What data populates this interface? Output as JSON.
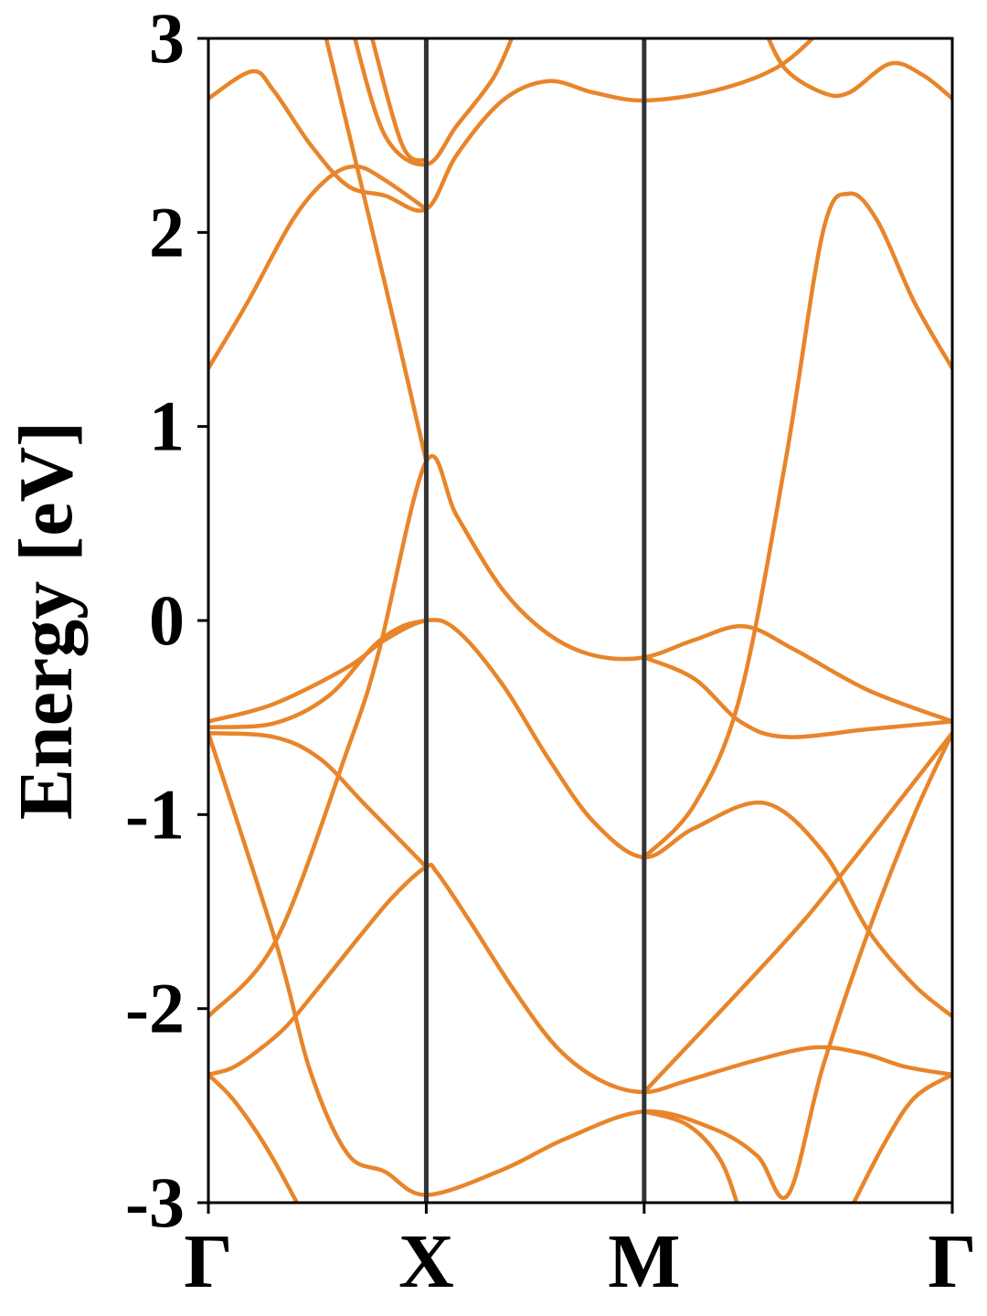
{
  "chart_data": {
    "type": "line",
    "ylabel": "Energy [eV]",
    "xlim": [
      0,
      3.414
    ],
    "ylim": [
      -3,
      3
    ],
    "xticks": [
      {
        "value": 0,
        "label": "Γ"
      },
      {
        "value": 1,
        "label": "X"
      },
      {
        "value": 2,
        "label": "M"
      },
      {
        "value": 3.414,
        "label": "Γ"
      }
    ],
    "yticks": [
      -3,
      -2,
      -1,
      0,
      1,
      2,
      3
    ],
    "series": [
      {
        "color": "#e8852a",
        "x": [
          0,
          0.1,
          0.2,
          0.3,
          0.43
        ],
        "values": [
          -2.34,
          -2.45,
          -2.6,
          -2.78,
          -3.05
        ]
      },
      {
        "color": "#e8852a",
        "x": [
          0,
          0.1,
          0.2,
          0.35,
          0.5,
          0.7,
          0.85,
          1,
          1.05,
          1.2,
          1.4,
          1.6,
          1.8,
          2,
          2.2,
          2.5,
          2.78,
          3.0,
          3.2,
          3.414
        ],
        "values": [
          -2.34,
          -2.31,
          -2.24,
          -2.1,
          -1.9,
          -1.62,
          -1.42,
          -1.27,
          -1.3,
          -1.55,
          -1.9,
          -2.2,
          -2.37,
          -2.43,
          -2.37,
          -2.27,
          -2.2,
          -2.23,
          -2.3,
          -2.34
        ]
      },
      {
        "color": "#e8852a",
        "x": [
          0,
          0.31,
          0.64,
          0.78,
          1,
          1.14,
          1.35,
          1.56,
          1.77,
          2,
          2.23,
          2.46,
          2.69,
          3.03,
          3.414
        ],
        "values": [
          -2.04,
          -1.65,
          -0.66,
          -0.17,
          0.82,
          0.54,
          0.16,
          -0.07,
          -0.18,
          -0.19,
          -0.1,
          -0.03,
          -0.15,
          -0.36,
          -0.52
        ]
      },
      {
        "color": "#e8852a",
        "x": [
          0.53,
          0.72,
          0.86,
          1
        ],
        "values": [
          3.05,
          2.16,
          1.5,
          0.82
        ]
      },
      {
        "color": "#e8852a",
        "x": [
          0,
          0.31,
          0.47,
          0.64,
          0.81,
          1,
          1.35,
          1.64,
          2,
          2.32,
          2.52,
          2.66,
          2.82,
          3.03,
          3.24,
          3.414
        ],
        "values": [
          -0.58,
          -1.66,
          -2.33,
          -2.75,
          -2.84,
          -2.96,
          -2.83,
          -2.67,
          -2.53,
          -2.62,
          -2.76,
          -2.96,
          -2.3,
          -1.6,
          -1.0,
          -0.58
        ]
      },
      {
        "color": "#e8852a",
        "x": [
          2,
          2.2,
          2.35,
          2.44
        ],
        "values": [
          -2.53,
          -2.6,
          -2.78,
          -3.05
        ]
      },
      {
        "color": "#e8852a",
        "x": [
          2.94,
          3.1,
          3.24,
          3.414
        ],
        "values": [
          -3.05,
          -2.7,
          -2.46,
          -2.34
        ]
      },
      {
        "color": "#e8852a",
        "x": [
          0,
          0.3,
          0.51,
          0.72,
          1
        ],
        "values": [
          -0.58,
          -0.6,
          -0.71,
          -0.95,
          -1.27
        ]
      },
      {
        "color": "#e8852a",
        "x": [
          0,
          0.3,
          0.64,
          0.81,
          1,
          1.14,
          1.35,
          1.56,
          1.77,
          2,
          2.23,
          2.55,
          2.82,
          3.03,
          3.24,
          3.414
        ],
        "values": [
          -0.52,
          -0.43,
          -0.24,
          -0.1,
          0.0,
          -0.05,
          -0.33,
          -0.71,
          -1.04,
          -1.22,
          -1.07,
          -0.94,
          -1.19,
          -1.6,
          -1.88,
          -2.04
        ]
      },
      {
        "color": "#e8852a",
        "x": [
          0,
          0.3,
          0.55,
          0.76,
          0.89,
          1
        ],
        "values": [
          -0.55,
          -0.53,
          -0.39,
          -0.13,
          -0.03,
          0.0
        ]
      },
      {
        "color": "#e8852a",
        "x": [
          2,
          2.23,
          2.44,
          2.65,
          3.03,
          3.414
        ],
        "values": [
          -0.19,
          -0.3,
          -0.52,
          -0.6,
          -0.56,
          -0.52
        ]
      },
      {
        "color": "#e8852a",
        "x": [
          2,
          2.61,
          2.89,
          3.414
        ],
        "values": [
          -2.43,
          -1.7,
          -1.33,
          -0.58
        ]
      },
      {
        "color": "#e8852a",
        "x": [
          2,
          2.23,
          2.44,
          2.65,
          2.82,
          2.94,
          3.07,
          3.24,
          3.414
        ],
        "values": [
          -1.22,
          -0.95,
          -0.39,
          0.83,
          2.0,
          2.2,
          2.06,
          1.64,
          1.3
        ]
      },
      {
        "color": "#e8852a",
        "x": [
          0,
          0.2,
          0.3,
          0.47,
          0.64,
          0.81,
          1,
          1.14,
          1.35,
          1.56,
          1.77,
          2,
          2.32,
          2.61,
          2.82
        ],
        "values": [
          2.69,
          2.83,
          2.73,
          2.45,
          2.24,
          2.19,
          2.12,
          2.4,
          2.68,
          2.78,
          2.72,
          2.68,
          2.73,
          2.85,
          3.05
        ]
      },
      {
        "color": "#e8852a",
        "x": [
          0,
          0.18,
          0.39,
          0.55,
          0.68,
          0.81,
          1
        ],
        "values": [
          1.3,
          1.64,
          2.07,
          2.28,
          2.34,
          2.27,
          2.12
        ]
      },
      {
        "color": "#e8852a",
        "x": [
          0.66,
          0.81,
          1,
          1.14,
          1.31,
          1.41
        ],
        "values": [
          3.05,
          2.5,
          2.35,
          2.55,
          2.8,
          3.05
        ]
      },
      {
        "color": "#e8852a",
        "x": [
          0.74,
          0.89,
          1
        ],
        "values": [
          3.05,
          2.45,
          2.37
        ]
      },
      {
        "color": "#e8852a",
        "x": [
          2.55,
          2.65,
          2.82,
          2.94,
          3.13,
          3.28,
          3.414
        ],
        "values": [
          3.05,
          2.84,
          2.72,
          2.72,
          2.87,
          2.81,
          2.69
        ]
      }
    ]
  }
}
